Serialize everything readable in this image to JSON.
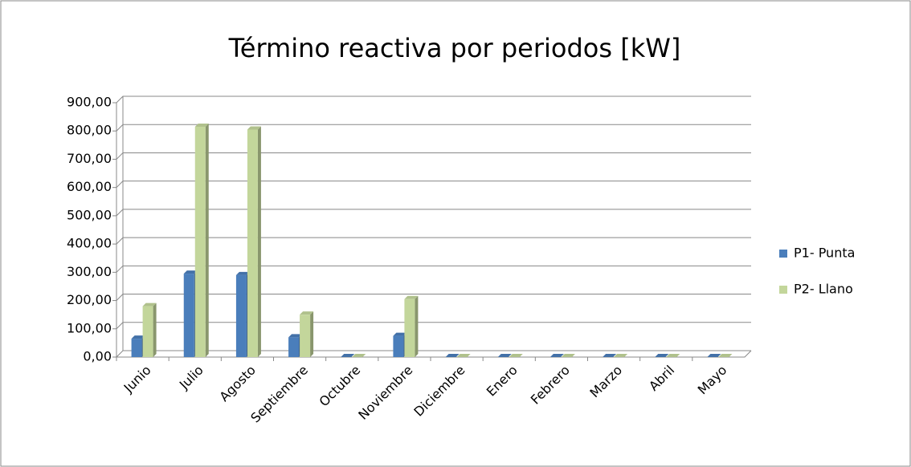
{
  "chart_data": {
    "type": "bar",
    "title": "Término reactiva por periodos [kW]",
    "categories": [
      "Junio",
      "Julio",
      "Agosto",
      "Septiembre",
      "Octubre",
      "Noviembre",
      "Diciembre",
      "Enero",
      "Febrero",
      "Marzo",
      "Abril",
      "Mayo"
    ],
    "series": [
      {
        "name": "P1- Punta",
        "color": "#4a7ebb",
        "values": [
          65,
          295,
          290,
          70,
          0,
          75,
          0,
          0,
          0,
          0,
          0,
          0
        ]
      },
      {
        "name": "P2- Llano",
        "color": "#c3d69b",
        "values": [
          180,
          815,
          805,
          150,
          0,
          205,
          0,
          0,
          0,
          0,
          0,
          0
        ]
      }
    ],
    "ylim": [
      0,
      900
    ],
    "yticks": [
      {
        "value": 0,
        "label": "0,00"
      },
      {
        "value": 100,
        "label": "100,00"
      },
      {
        "value": 200,
        "label": "200,00"
      },
      {
        "value": 300,
        "label": "300,00"
      },
      {
        "value": 400,
        "label": "400,00"
      },
      {
        "value": 500,
        "label": "500,00"
      },
      {
        "value": 600,
        "label": "600,00"
      },
      {
        "value": 700,
        "label": "700,00"
      },
      {
        "value": 800,
        "label": "800,00"
      },
      {
        "value": 900,
        "label": "900,00"
      }
    ],
    "grid": true,
    "legend": "right"
  }
}
